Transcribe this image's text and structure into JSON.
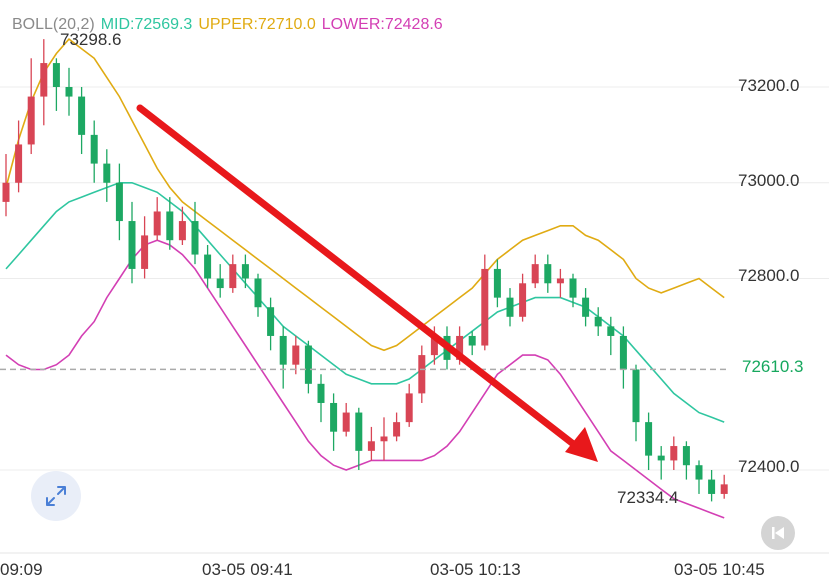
{
  "legend": {
    "indicator": "BOLL(20,2)",
    "mid": "MID:72569.3",
    "upper": "UPPER:72710.0",
    "lower": "LOWER:72428.6"
  },
  "colors": {
    "indicator": "#8a8a8a",
    "mid": "#2fc6a0",
    "upper": "#e0ab13",
    "lower": "#d33fb4",
    "up_candle": "#d84555",
    "down_candle": "#1da863",
    "arrow": "#e8181b",
    "current_price": "#17a85e"
  },
  "current_price_label": "72610.3",
  "annotations": {
    "high": "73298.6",
    "low": "72334.4"
  },
  "icons": {
    "expand": "expand-diagonal-icon",
    "back": "skip-back-icon"
  },
  "chart_data": {
    "type": "candlestick",
    "indicator": "BOLL(20,2)",
    "y_ticks": [
      "73200.0",
      "73000.0",
      "72800.0",
      "72400.0"
    ],
    "y_tick_values": [
      73200,
      73000,
      72800,
      72400
    ],
    "x_ticks": [
      "09:09",
      "03-05 09:41",
      "03-05 10:13",
      "03-05 10:45"
    ],
    "current_price": 72610.3,
    "y_range": [
      72270,
      73400
    ],
    "candles": [
      [
        72960,
        73000,
        72930,
        73060
      ],
      [
        73000,
        73080,
        72980,
        73130
      ],
      [
        73080,
        73180,
        73060,
        73260
      ],
      [
        73180,
        73250,
        73120,
        73300
      ],
      [
        73250,
        73200,
        73150,
        73260
      ],
      [
        73200,
        73180,
        73140,
        73240
      ],
      [
        73180,
        73100,
        73060,
        73200
      ],
      [
        73100,
        73040,
        73000,
        73130
      ],
      [
        73040,
        73000,
        72960,
        73070
      ],
      [
        73000,
        72920,
        72880,
        73040
      ],
      [
        72920,
        72820,
        72790,
        72960
      ],
      [
        72820,
        72890,
        72800,
        72930
      ],
      [
        72890,
        72940,
        72880,
        72970
      ],
      [
        72940,
        72880,
        72860,
        72970
      ],
      [
        72880,
        72920,
        72870,
        72950
      ],
      [
        72920,
        72850,
        72830,
        72960
      ],
      [
        72850,
        72800,
        72780,
        72870
      ],
      [
        72800,
        72780,
        72760,
        72830
      ],
      [
        72780,
        72830,
        72770,
        72850
      ],
      [
        72830,
        72800,
        72780,
        72850
      ],
      [
        72800,
        72740,
        72720,
        72810
      ],
      [
        72740,
        72680,
        72650,
        72760
      ],
      [
        72680,
        72620,
        72570,
        72700
      ],
      [
        72620,
        72660,
        72600,
        72680
      ],
      [
        72660,
        72580,
        72560,
        72670
      ],
      [
        72580,
        72540,
        72500,
        72600
      ],
      [
        72540,
        72480,
        72440,
        72560
      ],
      [
        72480,
        72520,
        72470,
        72540
      ],
      [
        72520,
        72440,
        72400,
        72530
      ],
      [
        72440,
        72460,
        72420,
        72490
      ],
      [
        72460,
        72470,
        72420,
        72510
      ],
      [
        72470,
        72500,
        72460,
        72520
      ],
      [
        72500,
        72560,
        72490,
        72580
      ],
      [
        72560,
        72640,
        72540,
        72660
      ],
      [
        72640,
        72680,
        72620,
        72700
      ],
      [
        72680,
        72630,
        72610,
        72700
      ],
      [
        72630,
        72680,
        72620,
        72700
      ],
      [
        72680,
        72660,
        72640,
        72690
      ],
      [
        72660,
        72820,
        72650,
        72850
      ],
      [
        72820,
        72760,
        72740,
        72840
      ],
      [
        72760,
        72720,
        72700,
        72780
      ],
      [
        72720,
        72790,
        72710,
        72810
      ],
      [
        72790,
        72830,
        72780,
        72850
      ],
      [
        72830,
        72790,
        72770,
        72850
      ],
      [
        72790,
        72800,
        72760,
        72820
      ],
      [
        72800,
        72760,
        72740,
        72810
      ],
      [
        72760,
        72720,
        72700,
        72780
      ],
      [
        72720,
        72700,
        72680,
        72740
      ],
      [
        72700,
        72680,
        72640,
        72720
      ],
      [
        72680,
        72610,
        72570,
        72700
      ],
      [
        72610,
        72500,
        72460,
        72620
      ],
      [
        72500,
        72430,
        72400,
        72520
      ],
      [
        72430,
        72420,
        72380,
        72450
      ],
      [
        72420,
        72450,
        72400,
        72470
      ],
      [
        72450,
        72410,
        72380,
        72460
      ],
      [
        72410,
        72380,
        72350,
        72420
      ],
      [
        72380,
        72350,
        72334.4,
        72400
      ],
      [
        72350,
        72370,
        72340,
        72390
      ]
    ],
    "series": {
      "upper": [
        72990,
        73090,
        73170,
        73230,
        73270,
        73300,
        73280,
        73260,
        73220,
        73180,
        73130,
        73080,
        73030,
        72990,
        72960,
        72940,
        72920,
        72900,
        72880,
        72860,
        72840,
        72820,
        72800,
        72780,
        72760,
        72740,
        72720,
        72700,
        72680,
        72660,
        72650,
        72660,
        72680,
        72700,
        72720,
        72740,
        72760,
        72780,
        72810,
        72840,
        72860,
        72880,
        72890,
        72900,
        72910,
        72910,
        72890,
        72880,
        72860,
        72840,
        72800,
        72780,
        72770,
        72780,
        72790,
        72800,
        72780,
        72760
      ],
      "mid": [
        72820,
        72850,
        72880,
        72910,
        72940,
        72960,
        72970,
        72980,
        72990,
        73000,
        73000,
        72990,
        72980,
        72960,
        72940,
        72910,
        72880,
        72850,
        72820,
        72790,
        72760,
        72730,
        72700,
        72680,
        72660,
        72640,
        72620,
        72600,
        72590,
        72580,
        72580,
        72580,
        72590,
        72610,
        72630,
        72650,
        72670,
        72690,
        72710,
        72730,
        72740,
        72750,
        72760,
        72760,
        72760,
        72750,
        72740,
        72720,
        72700,
        72680,
        72650,
        72620,
        72590,
        72560,
        72540,
        72520,
        72510,
        72500
      ],
      "lower": [
        72640,
        72620,
        72610,
        72610,
        72620,
        72640,
        72680,
        72710,
        72760,
        72800,
        72840,
        72870,
        72880,
        72870,
        72850,
        72820,
        72780,
        72740,
        72700,
        72660,
        72620,
        72580,
        72540,
        72500,
        72460,
        72430,
        72410,
        72400,
        72410,
        72420,
        72420,
        72420,
        72420,
        72420,
        72430,
        72450,
        72480,
        72520,
        72560,
        72600,
        72620,
        72640,
        72640,
        72630,
        72600,
        72560,
        72520,
        72480,
        72440,
        72420,
        72400,
        72380,
        72360,
        72340,
        72330,
        72320,
        72310,
        72300
      ]
    }
  }
}
